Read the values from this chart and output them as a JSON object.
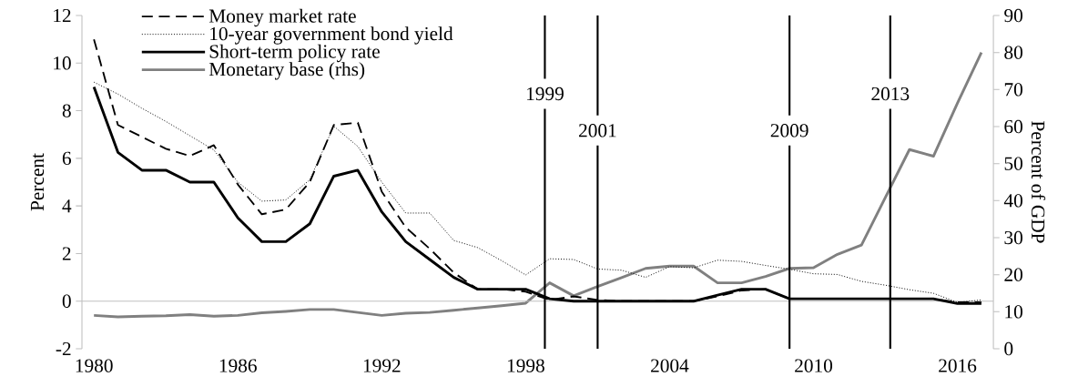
{
  "chart_data": {
    "type": "line",
    "ylabel": "Percent",
    "y2label": "Percent of GDP",
    "x": [
      1980,
      1981,
      1982,
      1983,
      1984,
      1985,
      1986,
      1987,
      1988,
      1989,
      1990,
      1991,
      1992,
      1993,
      1994,
      1995,
      1996,
      1997,
      1998,
      1999,
      2000,
      2001,
      2002,
      2003,
      2004,
      2005,
      2006,
      2007,
      2008,
      2009,
      2010,
      2011,
      2012,
      2013,
      2014,
      2015,
      2016,
      2017
    ],
    "xlim": [
      1979.5,
      2017.5
    ],
    "xticks": [
      1980,
      1986,
      1992,
      1998,
      2004,
      2010,
      2016
    ],
    "ylim": [
      -2,
      12
    ],
    "yticks": [
      -2,
      0,
      2,
      4,
      6,
      8,
      10,
      12
    ],
    "y2lim": [
      0,
      90
    ],
    "y2ticks": [
      0,
      10,
      20,
      30,
      40,
      50,
      60,
      70,
      80,
      90
    ],
    "legend": "top left",
    "series": [
      {
        "name": "Money market rate",
        "color": "#000000",
        "line_style": "dashed",
        "values": [
          11.0,
          7.4,
          6.9,
          6.4,
          6.1,
          6.55,
          4.9,
          3.65,
          3.85,
          5.0,
          7.4,
          7.5,
          4.6,
          3.1,
          2.2,
          1.2,
          0.5,
          0.5,
          0.4,
          0.05,
          0.2,
          0.05,
          0.0,
          0.0,
          0.0,
          0.0,
          0.2,
          0.45,
          0.5,
          0.1,
          0.1,
          0.1,
          0.1,
          0.1,
          0.1,
          0.1,
          -0.05,
          -0.05
        ]
      },
      {
        "name": "10-year government bond yield",
        "color": "#000000",
        "line_style": "dotted",
        "values": [
          9.2,
          8.7,
          8.1,
          7.55,
          6.95,
          6.35,
          5.0,
          4.2,
          4.25,
          5.1,
          7.35,
          6.5,
          5.0,
          3.7,
          3.7,
          2.55,
          2.25,
          1.7,
          1.1,
          1.78,
          1.75,
          1.35,
          1.3,
          1.0,
          1.45,
          1.4,
          1.72,
          1.67,
          1.5,
          1.34,
          1.15,
          1.12,
          0.83,
          0.67,
          0.48,
          0.33,
          -0.05,
          0.05
        ]
      },
      {
        "name": "Short-term policy rate",
        "color": "#000000",
        "line_style": "solid",
        "values": [
          9.0,
          6.25,
          5.5,
          5.5,
          5.0,
          5.0,
          3.5,
          2.5,
          2.5,
          3.25,
          5.25,
          5.5,
          3.75,
          2.5,
          1.75,
          1.0,
          0.5,
          0.5,
          0.5,
          0.1,
          0.0,
          0.0,
          0.0,
          0.0,
          0.0,
          0.0,
          0.25,
          0.5,
          0.5,
          0.1,
          0.1,
          0.1,
          0.1,
          0.1,
          0.1,
          0.1,
          -0.1,
          -0.1
        ]
      },
      {
        "name": "Monetary base (rhs)",
        "color": "#808080",
        "line_style": "solid",
        "axis": "y2",
        "values": [
          9.0,
          8.6,
          8.8,
          8.9,
          9.2,
          8.8,
          9.0,
          9.7,
          10.1,
          10.6,
          10.6,
          9.8,
          9.0,
          9.6,
          9.8,
          10.4,
          11.0,
          11.6,
          12.3,
          17.8,
          14.3,
          16.8,
          19.2,
          21.7,
          22.3,
          22.3,
          17.8,
          17.8,
          19.5,
          21.7,
          21.9,
          25.5,
          28.0,
          40.9,
          53.8,
          52.0,
          66.3,
          80.0
        ]
      }
    ],
    "ref_lines": [
      {
        "axis": "x",
        "value": 1998.8,
        "label": "1999",
        "color": "#000000"
      },
      {
        "axis": "x",
        "value": 2001,
        "label": "2001",
        "color": "#000000"
      },
      {
        "axis": "x",
        "value": 2009,
        "label": "2009",
        "color": "#000000"
      },
      {
        "axis": "x",
        "value": 2013.2,
        "label": "2013",
        "color": "#000000"
      }
    ]
  }
}
